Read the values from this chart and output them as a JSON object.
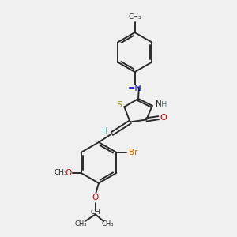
{
  "bg_color": "#f0f0f0",
  "bond_color": "#2a2a2a",
  "S_color": "#999900",
  "N_color": "#0000cc",
  "O_color": "#cc0000",
  "Br_color": "#cc6600",
  "H_color": "#4a8a8a",
  "figsize": [
    3.0,
    3.0
  ],
  "dpi": 100,
  "xlim": [
    0,
    10
  ],
  "ylim": [
    0,
    10
  ]
}
